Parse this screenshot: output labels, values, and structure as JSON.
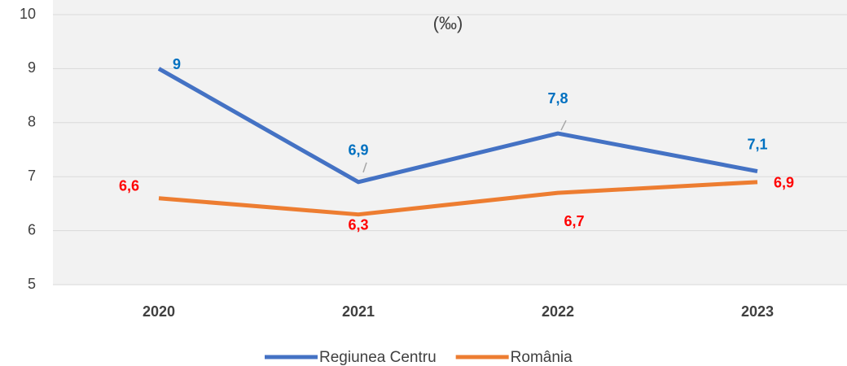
{
  "chart_data": {
    "type": "line",
    "title": "(‰)",
    "categories": [
      "2020",
      "2021",
      "2022",
      "2023"
    ],
    "series": [
      {
        "name": "Regiunea Centru",
        "color": "#4472c4",
        "label_color": "#0070c0",
        "values": [
          9,
          6.9,
          7.8,
          7.1
        ],
        "value_labels": [
          "9",
          "6,9",
          "7,8",
          "7,1"
        ]
      },
      {
        "name": "România",
        "color": "#ed7d31",
        "label_color": "#ff0000",
        "values": [
          6.6,
          6.3,
          6.7,
          6.9
        ],
        "value_labels": [
          "6,6",
          "6,3",
          "6,7",
          "6,9"
        ]
      }
    ],
    "ylim": [
      5,
      10
    ],
    "yticks": [
      5,
      6,
      7,
      8,
      9,
      10
    ],
    "grid": true,
    "legend": "bottom"
  }
}
